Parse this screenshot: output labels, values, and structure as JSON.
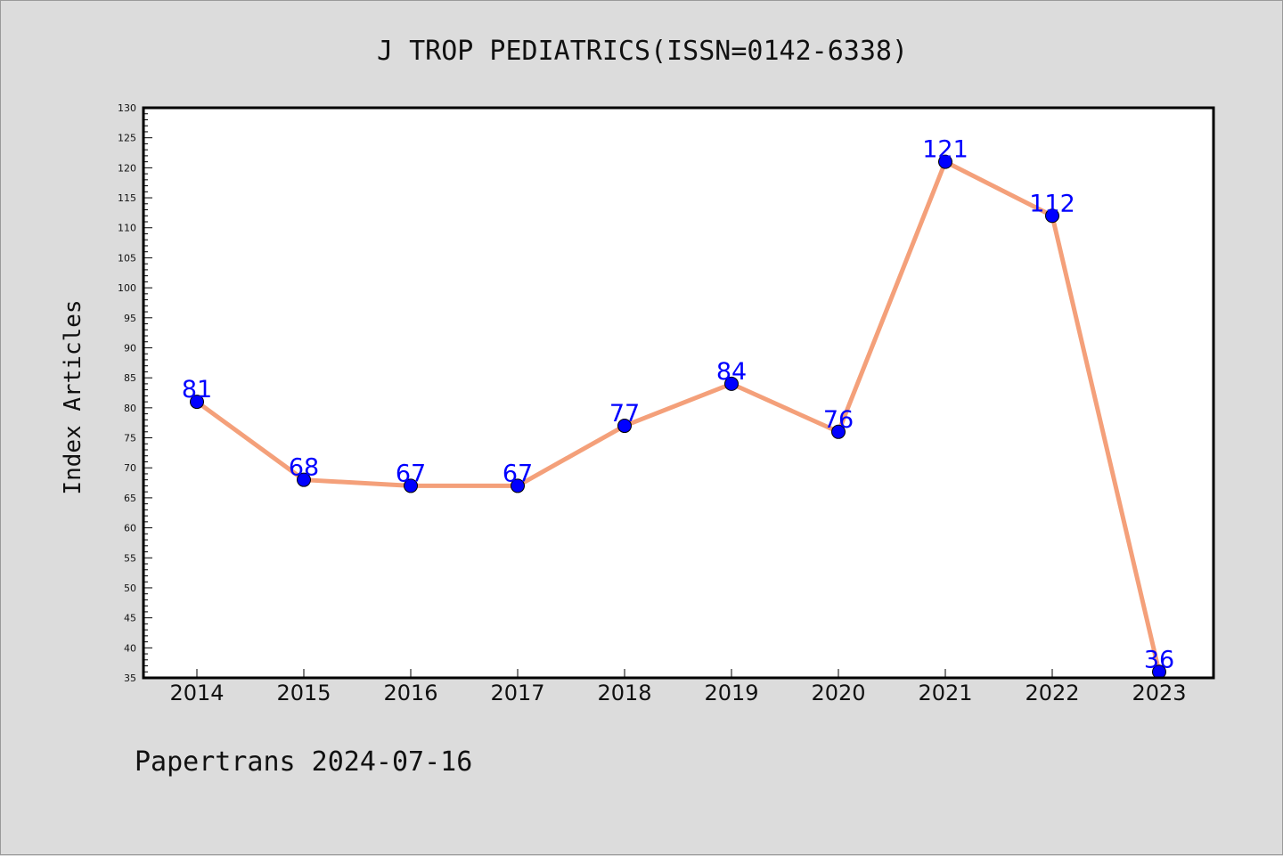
{
  "chart_data": {
    "type": "line",
    "title": "J TROP PEDIATRICS(ISSN=0142-6338)",
    "xlabel": "",
    "ylabel": "Index Articles",
    "categories": [
      "2014",
      "2015",
      "2016",
      "2017",
      "2018",
      "2019",
      "2020",
      "2021",
      "2022",
      "2023"
    ],
    "series": [
      {
        "values": [
          81,
          68,
          67,
          67,
          77,
          84,
          76,
          121,
          112,
          36
        ]
      }
    ],
    "ylim": [
      35,
      130
    ],
    "ytick_step": 5,
    "grid": false,
    "line_color": "#f4a07a",
    "marker_color": "#0000ff",
    "label_color": "#0000ff"
  },
  "footer": {
    "text": "Papertrans 2024-07-16"
  }
}
